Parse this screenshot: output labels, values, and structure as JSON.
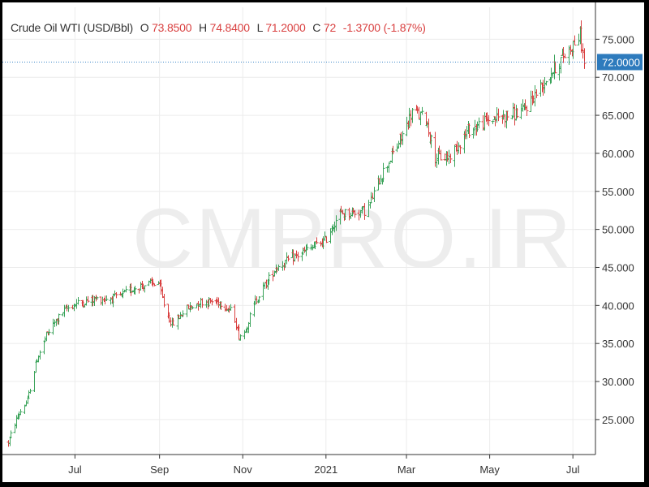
{
  "header": {
    "name": "Crude Oil WTI (USD/Bbl)",
    "o_label": "O",
    "o_value": "73.8500",
    "h_label": "H",
    "h_value": "74.8400",
    "l_label": "L",
    "l_value": "71.2000",
    "c_label": "C",
    "c_value": "72",
    "change": "-1.3700",
    "change_pct": "(-1.87%)"
  },
  "watermark": "CMPRO.IR",
  "colors": {
    "up": "#3aa35a",
    "down": "#d94040",
    "price_tag": "#2e7bbd",
    "price_line": "#3a86c8"
  },
  "chart_data": {
    "type": "ohlc",
    "title": "Crude Oil WTI (USD/Bbl)",
    "y_ticks": [
      "25.000",
      "30.000",
      "35.000",
      "40.000",
      "45.000",
      "50.000",
      "55.000",
      "60.000",
      "65.000",
      "70.000",
      "75.000"
    ],
    "ylim": [
      20.4,
      79.2
    ],
    "x_tick_labels": [
      "Jul",
      "Sep",
      "Nov",
      "2021",
      "Mar",
      "May",
      "Jul"
    ],
    "x_tick_dates": [
      "2020-07-01",
      "2020-09-01",
      "2020-11-01",
      "2021-01-01",
      "2021-03-01",
      "2021-05-01",
      "2021-07-01"
    ],
    "x_range": [
      "2020-05-13",
      "2021-07-11"
    ],
    "last_price": "72.0000",
    "last_price_value": 72.0,
    "grid": true,
    "price_path": [
      [
        "2020-05-13",
        22.0
      ],
      [
        "2020-05-20",
        25.5
      ],
      [
        "2020-05-27",
        27.5
      ],
      [
        "2020-06-03",
        33.0
      ],
      [
        "2020-06-10",
        36.0
      ],
      [
        "2020-06-17",
        38.0
      ],
      [
        "2020-06-24",
        39.5
      ],
      [
        "2020-07-01",
        40.2
      ],
      [
        "2020-07-15",
        40.8
      ],
      [
        "2020-08-01",
        41.0
      ],
      [
        "2020-08-15",
        42.5
      ],
      [
        "2020-08-31",
        43.0
      ],
      [
        "2020-09-05",
        39.5
      ],
      [
        "2020-09-10",
        37.5
      ],
      [
        "2020-09-20",
        39.5
      ],
      [
        "2020-10-01",
        40.5
      ],
      [
        "2020-10-15",
        40.5
      ],
      [
        "2020-10-25",
        39.0
      ],
      [
        "2020-10-29",
        36.0
      ],
      [
        "2020-11-02",
        36.5
      ],
      [
        "2020-11-10",
        40.5
      ],
      [
        "2020-11-25",
        45.0
      ],
      [
        "2020-12-10",
        46.5
      ],
      [
        "2020-12-31",
        48.5
      ],
      [
        "2021-01-10",
        52.0
      ],
      [
        "2021-01-31",
        52.5
      ],
      [
        "2021-02-10",
        57.0
      ],
      [
        "2021-02-25",
        62.0
      ],
      [
        "2021-03-05",
        65.5
      ],
      [
        "2021-03-15",
        64.5
      ],
      [
        "2021-03-22",
        59.5
      ],
      [
        "2021-04-01",
        59.5
      ],
      [
        "2021-04-15",
        63.0
      ],
      [
        "2021-05-01",
        64.5
      ],
      [
        "2021-05-15",
        65.0
      ],
      [
        "2021-05-25",
        65.5
      ],
      [
        "2021-06-10",
        69.5
      ],
      [
        "2021-06-25",
        73.0
      ],
      [
        "2021-07-06",
        75.5
      ],
      [
        "2021-07-09",
        72.0
      ]
    ]
  }
}
